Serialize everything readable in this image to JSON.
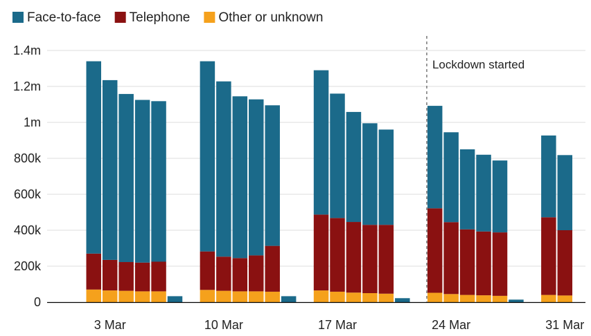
{
  "chart_data": {
    "type": "bar",
    "stacked": true,
    "colors": {
      "face_to_face": "#1b6a8a",
      "telephone": "#8a1111",
      "other": "#f5a11c",
      "grid": "#dddddd",
      "axis": "#000000",
      "annotation_line": "#555555",
      "text": "#222222"
    },
    "legend": {
      "placement": "top-left",
      "items": [
        {
          "key": "face_to_face",
          "label": "Face-to-face"
        },
        {
          "key": "telephone",
          "label": "Telephone"
        },
        {
          "key": "other",
          "label": "Other or unknown"
        }
      ]
    },
    "y_axis": {
      "min": 0,
      "max": 1400000,
      "ticks": [
        {
          "value": 0,
          "label": "0"
        },
        {
          "value": 200000,
          "label": "200k"
        },
        {
          "value": 400000,
          "label": "400k"
        },
        {
          "value": 600000,
          "label": "600k"
        },
        {
          "value": 800000,
          "label": "800k"
        },
        {
          "value": 1000000,
          "label": "1m"
        },
        {
          "value": 1200000,
          "label": "1.2m"
        },
        {
          "value": 1400000,
          "label": "1.4m"
        }
      ],
      "grid": true
    },
    "x_axis": {
      "start": "2020-03-02",
      "end": "2020-04-01",
      "ticks": [
        {
          "date": "2020-03-03",
          "label": "3 Mar"
        },
        {
          "date": "2020-03-10",
          "label": "10 Mar"
        },
        {
          "date": "2020-03-17",
          "label": "17 Mar"
        },
        {
          "date": "2020-03-24",
          "label": "24 Mar"
        },
        {
          "date": "2020-03-31",
          "label": "31 Mar"
        }
      ]
    },
    "annotation": {
      "date": "2020-03-23",
      "label": "Lockdown started"
    },
    "days": [
      {
        "date": "2020-03-02",
        "other": 70000,
        "telephone": 200000,
        "face_to_face": 1070000
      },
      {
        "date": "2020-03-03",
        "other": 65000,
        "telephone": 170000,
        "face_to_face": 1000000
      },
      {
        "date": "2020-03-04",
        "other": 63000,
        "telephone": 160000,
        "face_to_face": 935000
      },
      {
        "date": "2020-03-05",
        "other": 60000,
        "telephone": 160000,
        "face_to_face": 905000
      },
      {
        "date": "2020-03-06",
        "other": 60000,
        "telephone": 165000,
        "face_to_face": 893000
      },
      {
        "date": "2020-03-07",
        "other": 0,
        "telephone": 0,
        "face_to_face": 33000
      },
      {
        "date": "2020-03-09",
        "other": 68000,
        "telephone": 214000,
        "face_to_face": 1058000
      },
      {
        "date": "2020-03-10",
        "other": 63000,
        "telephone": 190000,
        "face_to_face": 975000
      },
      {
        "date": "2020-03-11",
        "other": 60000,
        "telephone": 185000,
        "face_to_face": 900000
      },
      {
        "date": "2020-03-12",
        "other": 60000,
        "telephone": 200000,
        "face_to_face": 868000
      },
      {
        "date": "2020-03-13",
        "other": 58000,
        "telephone": 255000,
        "face_to_face": 782000
      },
      {
        "date": "2020-03-14",
        "other": 0,
        "telephone": 0,
        "face_to_face": 33000
      },
      {
        "date": "2020-03-16",
        "other": 65000,
        "telephone": 422000,
        "face_to_face": 803000
      },
      {
        "date": "2020-03-17",
        "other": 58000,
        "telephone": 410000,
        "face_to_face": 692000
      },
      {
        "date": "2020-03-18",
        "other": 53000,
        "telephone": 393000,
        "face_to_face": 612000
      },
      {
        "date": "2020-03-19",
        "other": 50000,
        "telephone": 380000,
        "face_to_face": 565000
      },
      {
        "date": "2020-03-20",
        "other": 47000,
        "telephone": 383000,
        "face_to_face": 530000
      },
      {
        "date": "2020-03-21",
        "other": 0,
        "telephone": 0,
        "face_to_face": 22000
      },
      {
        "date": "2020-03-23",
        "other": 52000,
        "telephone": 470000,
        "face_to_face": 570000
      },
      {
        "date": "2020-03-24",
        "other": 45000,
        "telephone": 400000,
        "face_to_face": 500000
      },
      {
        "date": "2020-03-25",
        "other": 40000,
        "telephone": 365000,
        "face_to_face": 445000
      },
      {
        "date": "2020-03-26",
        "other": 38000,
        "telephone": 355000,
        "face_to_face": 427000
      },
      {
        "date": "2020-03-27",
        "other": 35000,
        "telephone": 353000,
        "face_to_face": 400000
      },
      {
        "date": "2020-03-28",
        "other": 0,
        "telephone": 0,
        "face_to_face": 14000
      },
      {
        "date": "2020-03-30",
        "other": 40000,
        "telephone": 432000,
        "face_to_face": 455000
      },
      {
        "date": "2020-03-31",
        "other": 37000,
        "telephone": 363000,
        "face_to_face": 418000
      }
    ]
  }
}
